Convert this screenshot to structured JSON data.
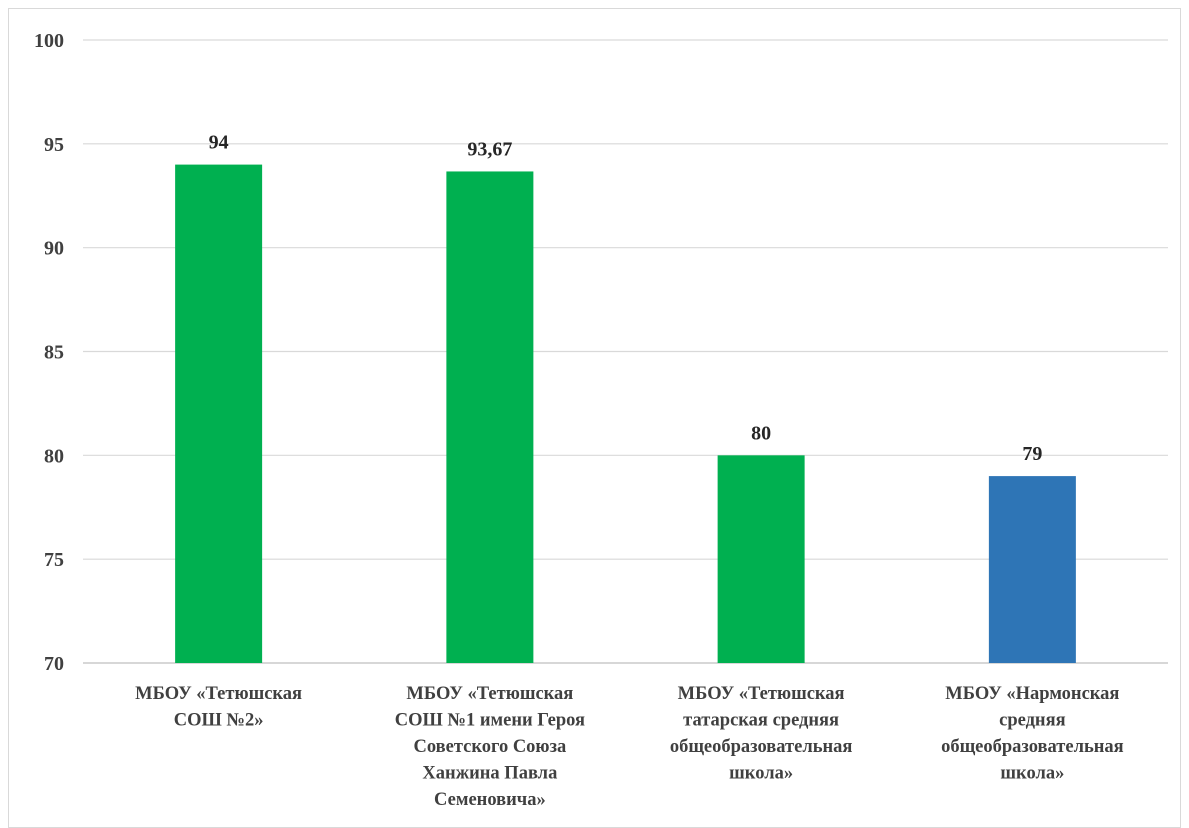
{
  "chart_data": {
    "type": "bar",
    "title": "",
    "xlabel": "",
    "ylabel": "",
    "ylim": [
      70,
      100
    ],
    "yticks": [
      "70",
      "75",
      "80",
      "85",
      "90",
      "95",
      "100"
    ],
    "grid": true,
    "legend": "none",
    "categories": [
      [
        "МБОУ «Тетюшская",
        "СОШ №2»"
      ],
      [
        "МБОУ «Тетюшская",
        "СОШ  №1 имени Героя",
        "Советского Союза",
        "Ханжина Павла",
        "Семеновича»"
      ],
      [
        "МБОУ «Тетюшская",
        "татарская средняя",
        "общеобразовательная",
        "школа»"
      ],
      [
        "МБОУ «Нармонская",
        "средняя",
        "общеобразовательная",
        "школа»"
      ]
    ],
    "values": [
      94,
      93.67,
      80,
      79
    ],
    "data_labels": [
      "94",
      "93,67",
      "80",
      "79"
    ],
    "colors": [
      "#00b050",
      "#00b050",
      "#00b050",
      "#2e75b6"
    ]
  }
}
